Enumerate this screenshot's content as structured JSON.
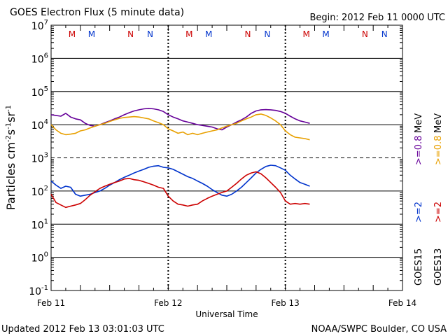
{
  "chart_data": {
    "type": "line",
    "title": "GOES Electron Flux (5 minute data)",
    "begin": "Begin: 2012 Feb 11 0000 UTC",
    "xlabel": "Universal Time",
    "ylabel": "Particles cm⁻²s⁻¹sr⁻¹",
    "ylabel_parts": {
      "base": "Particles cm",
      "sup1": "-2",
      "mid1": "s",
      "sup2": "-1",
      "mid2": "sr",
      "sup3": "-1"
    },
    "yscale": "log",
    "ylim": [
      0.1,
      10000000
    ],
    "y_ticks": [
      {
        "base": "10",
        "exp": "7"
      },
      {
        "base": "10",
        "exp": "6"
      },
      {
        "base": "10",
        "exp": "5"
      },
      {
        "base": "10",
        "exp": "4"
      },
      {
        "base": "10",
        "exp": "3"
      },
      {
        "base": "10",
        "exp": "2"
      },
      {
        "base": "10",
        "exp": "1"
      },
      {
        "base": "10",
        "exp": "0"
      },
      {
        "base": "10",
        "exp": "-1"
      }
    ],
    "xlim_hours": [
      0,
      72
    ],
    "x_ticks": [
      {
        "hour": 0,
        "label": "Feb 11"
      },
      {
        "hour": 24,
        "label": "Feb 12"
      },
      {
        "hour": 48,
        "label": "Feb 13"
      },
      {
        "hour": 72,
        "label": "Feb 14"
      }
    ],
    "day_hours": [
      24,
      48
    ],
    "alert_threshold": 1000,
    "grid": true,
    "markers": [
      {
        "hour": 4.3,
        "label": "M",
        "color": "#cc0000"
      },
      {
        "hour": 8.3,
        "label": "M",
        "color": "#0033cc"
      },
      {
        "hour": 16.3,
        "label": "N",
        "color": "#cc0000"
      },
      {
        "hour": 20.3,
        "label": "N",
        "color": "#0033cc"
      },
      {
        "hour": 28.3,
        "label": "M",
        "color": "#cc0000"
      },
      {
        "hour": 32.3,
        "label": "M",
        "color": "#0033cc"
      },
      {
        "hour": 40.3,
        "label": "N",
        "color": "#cc0000"
      },
      {
        "hour": 44.3,
        "label": "N",
        "color": "#0033cc"
      },
      {
        "hour": 52.3,
        "label": "M",
        "color": "#cc0000"
      },
      {
        "hour": 56.3,
        "label": "M",
        "color": "#0033cc"
      },
      {
        "hour": 64.3,
        "label": "N",
        "color": "#cc0000"
      },
      {
        "hour": 68.3,
        "label": "N",
        "color": "#0033cc"
      }
    ],
    "series": [
      {
        "name": "GOES15 >=0.8 MeV",
        "color": "#660099",
        "x_hours": [
          0,
          1,
          2,
          3,
          4,
          5,
          6,
          7,
          8,
          9,
          10,
          11,
          12,
          13,
          14,
          15,
          16,
          17,
          18,
          19,
          20,
          21,
          22,
          23,
          24,
          25,
          26,
          27,
          28,
          29,
          30,
          31,
          32,
          33,
          34,
          35,
          36,
          37,
          38,
          39,
          40,
          41,
          42,
          43,
          44,
          45,
          46,
          47,
          48,
          49,
          50,
          51,
          52,
          53
        ],
        "values": [
          20000,
          19000,
          18000,
          22000,
          17000,
          15000,
          14000,
          11000,
          9500,
          9000,
          10000,
          11500,
          13000,
          15000,
          17000,
          20000,
          23000,
          26000,
          28000,
          30000,
          31000,
          30000,
          28000,
          25000,
          20000,
          17000,
          15000,
          13000,
          12000,
          11000,
          10000,
          9500,
          9000,
          8500,
          7500,
          7000,
          8500,
          10000,
          12000,
          14000,
          17000,
          22000,
          26000,
          28000,
          28500,
          28000,
          27000,
          25000,
          22000,
          18000,
          15000,
          13000,
          12000,
          11000
        ]
      },
      {
        "name": "GOES13 >=0.8 MeV",
        "color": "#e8a000",
        "x_hours": [
          0,
          1,
          2,
          3,
          4,
          5,
          6,
          7,
          8,
          9,
          10,
          11,
          12,
          13,
          14,
          15,
          16,
          17,
          18,
          19,
          20,
          21,
          22,
          23,
          24,
          25,
          26,
          27,
          28,
          29,
          30,
          31,
          32,
          33,
          34,
          35,
          36,
          37,
          38,
          39,
          40,
          41,
          42,
          43,
          44,
          45,
          46,
          47,
          48,
          49,
          50,
          51,
          52,
          53
        ],
        "values": [
          10000,
          7000,
          5500,
          5000,
          5200,
          5500,
          6500,
          7000,
          8000,
          9000,
          10000,
          11000,
          12500,
          14000,
          15500,
          16500,
          17000,
          17500,
          17000,
          16000,
          15000,
          13000,
          11500,
          10000,
          7500,
          6500,
          5500,
          6000,
          5000,
          5500,
          5000,
          5500,
          6000,
          6500,
          7000,
          8000,
          9000,
          10000,
          11000,
          13000,
          15000,
          17000,
          20000,
          21000,
          19000,
          16000,
          13000,
          10000,
          6500,
          5000,
          4200,
          4000,
          3800,
          3500
        ]
      },
      {
        "name": "GOES15 >=2 MeV",
        "color": "#0033cc",
        "x_hours": [
          0,
          1,
          2,
          3,
          4,
          5,
          6,
          7,
          8,
          9,
          10,
          11,
          12,
          13,
          14,
          15,
          16,
          17,
          18,
          19,
          20,
          21,
          22,
          23,
          24,
          25,
          26,
          27,
          28,
          29,
          30,
          31,
          32,
          33,
          34,
          35,
          36,
          37,
          38,
          39,
          40,
          41,
          42,
          43,
          44,
          45,
          46,
          47,
          48,
          49,
          50,
          51,
          52,
          53
        ],
        "values": [
          200,
          150,
          120,
          140,
          130,
          80,
          70,
          75,
          80,
          90,
          100,
          120,
          150,
          180,
          220,
          260,
          300,
          350,
          400,
          450,
          520,
          560,
          580,
          520,
          500,
          450,
          380,
          320,
          270,
          240,
          200,
          170,
          140,
          110,
          90,
          75,
          70,
          80,
          100,
          130,
          180,
          250,
          350,
          450,
          550,
          600,
          580,
          500,
          420,
          300,
          230,
          180,
          160,
          140
        ]
      },
      {
        "name": "GOES13 >=2 MeV",
        "color": "#cc0000",
        "x_hours": [
          0,
          1,
          2,
          3,
          4,
          5,
          6,
          7,
          8,
          9,
          10,
          11,
          12,
          13,
          14,
          15,
          16,
          17,
          18,
          19,
          20,
          21,
          22,
          23,
          24,
          25,
          26,
          27,
          28,
          29,
          30,
          31,
          32,
          33,
          34,
          35,
          36,
          37,
          38,
          39,
          40,
          41,
          42,
          43,
          44,
          45,
          46,
          47,
          48,
          49,
          50,
          51,
          52,
          53
        ],
        "values": [
          80,
          45,
          38,
          32,
          35,
          38,
          42,
          55,
          75,
          95,
          120,
          140,
          160,
          180,
          200,
          230,
          240,
          220,
          210,
          190,
          170,
          150,
          130,
          120,
          70,
          50,
          40,
          38,
          35,
          38,
          40,
          50,
          60,
          70,
          80,
          90,
          100,
          130,
          170,
          230,
          300,
          350,
          380,
          330,
          250,
          180,
          130,
          90,
          50,
          40,
          42,
          40,
          42,
          40
        ]
      }
    ],
    "right_labels": [
      {
        "sat": "GOES15",
        "energy": ">=0.8 MeV",
        "color": "#660099"
      },
      {
        "sat": "GOES13",
        "energy": ">=0.8 MeV",
        "color": "#e8a000"
      },
      {
        "sat": "GOES15",
        "energy": ">=2",
        "color": "#0033cc"
      },
      {
        "sat": "GOES13",
        "energy": ">=2",
        "color": "#cc0000"
      }
    ],
    "right_energy_low": {
      "a": ">=2",
      "b": ">=2"
    },
    "right_energy_high": {
      "a": ">=0.8",
      "b": ">=0.8",
      "unit": "MeV"
    },
    "right_sats": {
      "a": "GOES15",
      "b": "GOES13"
    },
    "footer_left": "Updated 2012 Feb 13 03:01:03 UTC",
    "footer_right": "NOAA/SWPC Boulder, CO USA"
  }
}
